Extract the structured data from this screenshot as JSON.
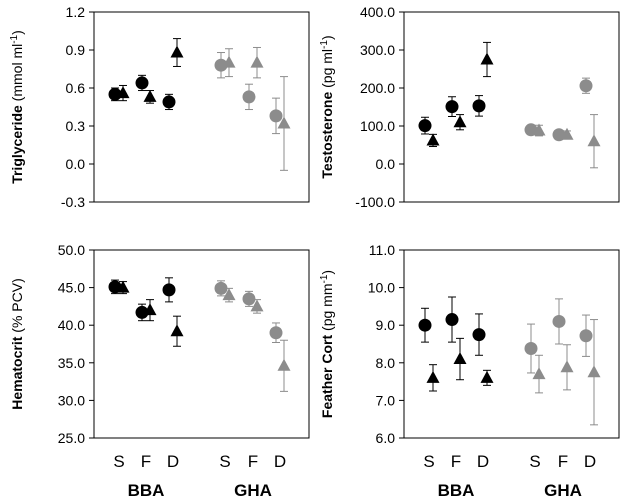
{
  "colors": {
    "bba": "#000000",
    "gha": "#8c8c8c"
  },
  "x_groups": [
    "BBA",
    "GHA"
  ],
  "x_categories": [
    "S",
    "F",
    "D"
  ],
  "chart_data": [
    {
      "type": "scatter",
      "ylabel_bold": "Triglyceride",
      "ylabel_rest": " (mmol ml",
      "ylabel_sup": "-1",
      "ylabel_end": ")",
      "ylim": [
        -0.3,
        1.2
      ],
      "yticks": [
        "-0.3",
        "0.0",
        "0.3",
        "0.6",
        "0.9",
        "1.2"
      ],
      "series": [
        {
          "group": "BBA",
          "marker": "circle",
          "values": [
            0.55,
            0.64,
            0.49
          ],
          "err": [
            0.05,
            0.06,
            0.06
          ]
        },
        {
          "group": "BBA",
          "marker": "triangle",
          "values": [
            0.56,
            0.53,
            0.88
          ],
          "err": [
            0.06,
            0.05,
            0.11
          ]
        },
        {
          "group": "GHA",
          "marker": "circle",
          "values": [
            0.78,
            0.53,
            0.38
          ],
          "err": [
            0.1,
            0.1,
            0.14
          ]
        },
        {
          "group": "GHA",
          "marker": "triangle",
          "values": [
            0.8,
            0.8,
            0.32
          ],
          "err": [
            0.11,
            0.12,
            0.37
          ]
        }
      ]
    },
    {
      "type": "scatter",
      "ylabel_bold": "Testosterone",
      "ylabel_rest": " (pg ml",
      "ylabel_sup": "-1",
      "ylabel_end": ")",
      "ylim": [
        -100,
        400
      ],
      "yticks": [
        "-100.0",
        "0.0",
        "100.0",
        "200.0",
        "300.0",
        "400.0"
      ],
      "series": [
        {
          "group": "BBA",
          "marker": "circle",
          "values": [
            101,
            151,
            153
          ],
          "err": [
            22,
            26,
            27
          ]
        },
        {
          "group": "BBA",
          "marker": "triangle",
          "values": [
            62,
            110,
            275
          ],
          "err": [
            16,
            20,
            45
          ]
        },
        {
          "group": "GHA",
          "marker": "circle",
          "values": [
            90,
            77,
            206
          ],
          "err": [
            12,
            11,
            20
          ]
        },
        {
          "group": "GHA",
          "marker": "triangle",
          "values": [
            88,
            77,
            60
          ],
          "err": [
            14,
            10,
            70
          ]
        }
      ]
    },
    {
      "type": "scatter",
      "ylabel_bold": "Hematocrit",
      "ylabel_rest": " (% PCV)",
      "ylabel_sup": "",
      "ylabel_end": "",
      "ylim": [
        25,
        50
      ],
      "yticks": [
        "25.0",
        "30.0",
        "35.0",
        "40.0",
        "45.0",
        "50.0"
      ],
      "series": [
        {
          "group": "BBA",
          "marker": "circle",
          "values": [
            45.1,
            41.7,
            44.7
          ],
          "err": [
            0.9,
            1.1,
            1.6
          ]
        },
        {
          "group": "BBA",
          "marker": "triangle",
          "values": [
            45.0,
            42.0,
            39.2
          ],
          "err": [
            0.8,
            1.4,
            2.0
          ]
        },
        {
          "group": "GHA",
          "marker": "circle",
          "values": [
            44.9,
            43.5,
            39.0
          ],
          "err": [
            1.0,
            1.0,
            1.3
          ]
        },
        {
          "group": "GHA",
          "marker": "triangle",
          "values": [
            44.0,
            42.5,
            34.6
          ],
          "err": [
            0.9,
            0.9,
            3.4
          ]
        }
      ]
    },
    {
      "type": "scatter",
      "ylabel_bold": "Feather Cort",
      "ylabel_rest": " (pg mm",
      "ylabel_sup": "-1",
      "ylabel_end": ")",
      "ylim": [
        6,
        11
      ],
      "yticks": [
        "6.0",
        "7.0",
        "8.0",
        "9.0",
        "10.0",
        "11.0"
      ],
      "series": [
        {
          "group": "BBA",
          "marker": "circle",
          "values": [
            9.0,
            9.15,
            8.75
          ],
          "err": [
            0.45,
            0.6,
            0.55
          ]
        },
        {
          "group": "BBA",
          "marker": "triangle",
          "values": [
            7.6,
            8.1,
            7.6
          ],
          "err": [
            0.35,
            0.55,
            0.2
          ]
        },
        {
          "group": "GHA",
          "marker": "circle",
          "values": [
            8.38,
            9.1,
            8.72
          ],
          "err": [
            0.65,
            0.6,
            0.55
          ]
        },
        {
          "group": "GHA",
          "marker": "triangle",
          "values": [
            7.7,
            7.88,
            7.75
          ],
          "err": [
            0.5,
            0.6,
            1.4
          ]
        }
      ]
    }
  ]
}
